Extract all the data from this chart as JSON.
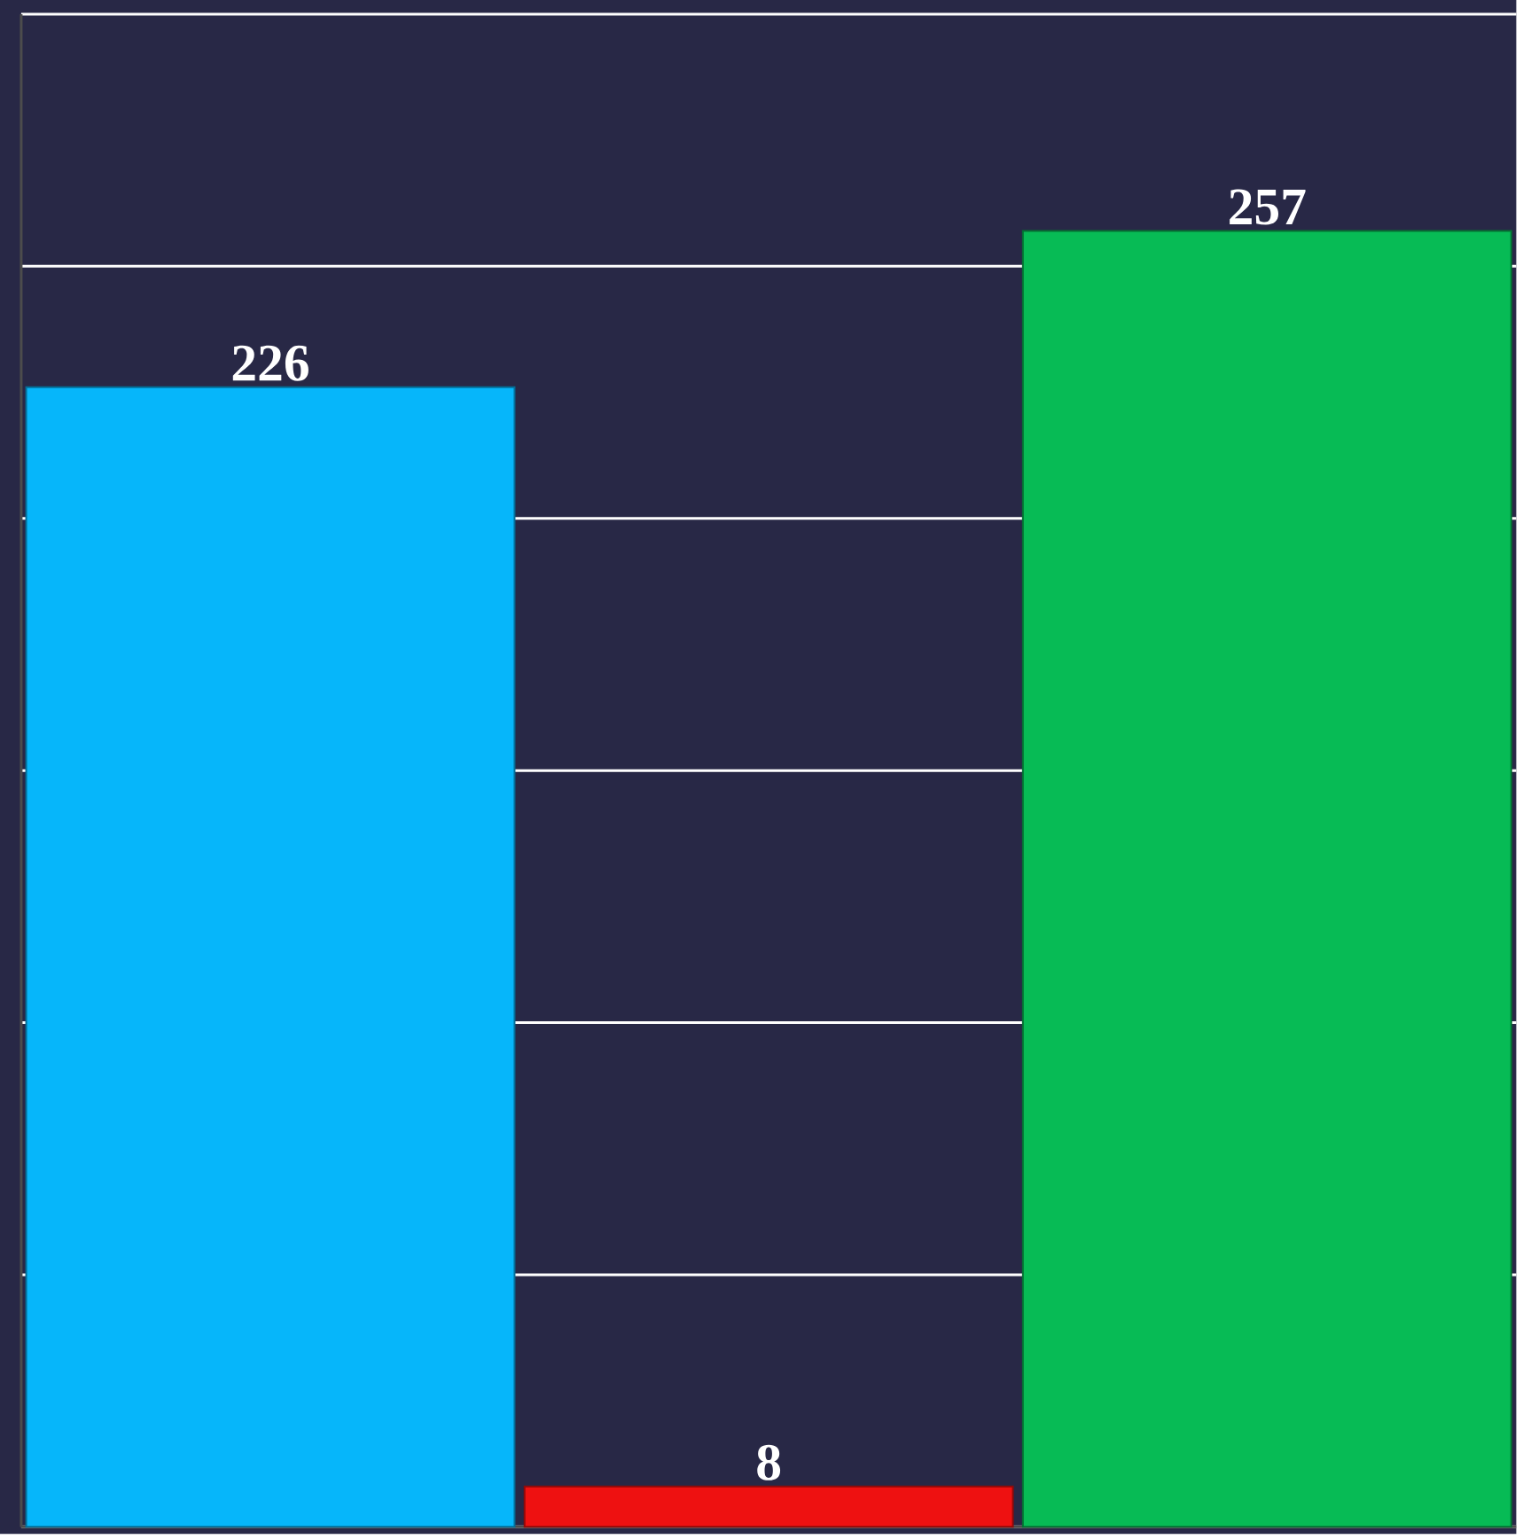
{
  "chart_data": {
    "type": "bar",
    "categories": [
      null,
      null,
      null
    ],
    "values": [
      226,
      8,
      257
    ],
    "colors": [
      "#06b6fa",
      "#ee1111",
      "#07bb55"
    ],
    "ylim": [
      0,
      300
    ],
    "yticks": [
      {
        "value": 0,
        "label": null
      },
      {
        "value": 50,
        "label": null
      },
      {
        "value": 100,
        "label": null
      },
      {
        "value": 150,
        "label": null
      },
      {
        "value": 200,
        "label": null
      },
      {
        "value": 250,
        "label": null
      },
      {
        "value": 300,
        "label": null
      }
    ],
    "grid": "y",
    "data_labels": true
  }
}
